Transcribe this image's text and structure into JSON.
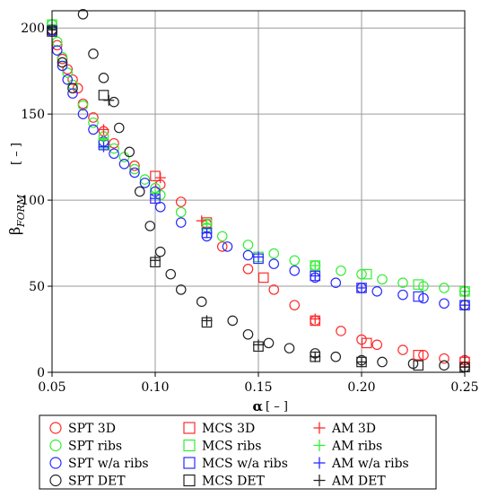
{
  "chart_data": {
    "type": "scatter",
    "title": "",
    "xlabel_main": "α",
    "xlabel_unit": "[ – ]",
    "ylabel_main": "β",
    "ylabel_sub": "FORM",
    "ylabel_unit": "[ – ]",
    "xlim": [
      0.05,
      0.25
    ],
    "ylim": [
      0,
      210
    ],
    "x_ticks": [
      "0.05",
      "0.10",
      "0.15",
      "0.20",
      "0.25"
    ],
    "y_ticks": [
      "0",
      "50",
      "100",
      "150",
      "200"
    ],
    "grid": true,
    "legend_position": "bottom",
    "colors": {
      "3D": "#ff2a2a",
      "ribs": "#33ee33",
      "wa_ribs": "#2a2aff",
      "DET": "#222222"
    },
    "series": [
      {
        "name": "SPT 3D",
        "marker": "circle",
        "color_key": "3D",
        "x": [
          0.05,
          0.0525,
          0.055,
          0.0575,
          0.06,
          0.0625,
          0.065,
          0.07,
          0.075,
          0.08,
          0.09,
          0.1025,
          0.1125,
          0.125,
          0.1325,
          0.145,
          0.1575,
          0.1675,
          0.1775,
          0.19,
          0.2,
          0.2075,
          0.22,
          0.23,
          0.24,
          0.25
        ],
        "y": [
          198,
          190,
          182,
          176,
          170,
          165,
          156,
          148,
          140,
          133,
          120,
          109,
          99,
          86,
          73,
          60,
          48,
          39,
          30,
          24,
          19,
          16,
          13,
          10,
          8,
          7
        ]
      },
      {
        "name": "SPT ribs",
        "marker": "circle",
        "color_key": "ribs",
        "x": [
          0.05,
          0.0525,
          0.055,
          0.0575,
          0.06,
          0.065,
          0.07,
          0.075,
          0.08,
          0.085,
          0.09,
          0.095,
          0.1,
          0.1025,
          0.1125,
          0.125,
          0.1325,
          0.145,
          0.1575,
          0.1675,
          0.1775,
          0.19,
          0.2,
          0.21,
          0.22,
          0.23,
          0.24,
          0.25
        ],
        "y": [
          202,
          192,
          183,
          174,
          167,
          155,
          145,
          137,
          130,
          125,
          118,
          112,
          107,
          103,
          93,
          84,
          79,
          74,
          69,
          65,
          62,
          59,
          57,
          54,
          52,
          50,
          49,
          47
        ]
      },
      {
        "name": "SPT w/a ribs",
        "marker": "circle",
        "color_key": "wa_ribs",
        "x": [
          0.05,
          0.0525,
          0.055,
          0.0575,
          0.06,
          0.065,
          0.07,
          0.075,
          0.08,
          0.085,
          0.09,
          0.095,
          0.1,
          0.1025,
          0.1125,
          0.125,
          0.135,
          0.145,
          0.1575,
          0.1675,
          0.1775,
          0.1875,
          0.2,
          0.2075,
          0.22,
          0.23,
          0.24,
          0.25
        ],
        "y": [
          198,
          187,
          178,
          170,
          162,
          150,
          141,
          134,
          127,
          121,
          116,
          110,
          105,
          96,
          87,
          79,
          73,
          68,
          63,
          59,
          55,
          52,
          49,
          47,
          45,
          43,
          40,
          39
        ]
      },
      {
        "name": "SPT DET",
        "marker": "circle",
        "color_key": "DET",
        "x": [
          0.05,
          0.055,
          0.06,
          0.065,
          0.07,
          0.075,
          0.08,
          0.0825,
          0.0875,
          0.0925,
          0.0975,
          0.1025,
          0.1075,
          0.1125,
          0.1225,
          0.1375,
          0.145,
          0.155,
          0.165,
          0.1775,
          0.1875,
          0.2,
          0.21,
          0.225,
          0.24,
          0.25
        ],
        "y": [
          199,
          180,
          165,
          208,
          185,
          171,
          157,
          142,
          128,
          105,
          85,
          70,
          57,
          48,
          41,
          30,
          22,
          17,
          14,
          11,
          9,
          7,
          6,
          5,
          4,
          3
        ]
      },
      {
        "name": "MCS 3D",
        "marker": "square",
        "color_key": "3D",
        "x": [
          0.05,
          0.1,
          0.125,
          0.1525,
          0.1775,
          0.2025,
          0.2275,
          0.25
        ],
        "y": [
          199,
          114,
          87,
          55,
          30,
          17,
          10,
          6
        ]
      },
      {
        "name": "MCS ribs",
        "marker": "square",
        "color_key": "ribs",
        "x": [
          0.05,
          0.075,
          0.125,
          0.15,
          0.1775,
          0.2025,
          0.2275,
          0.25
        ],
        "y": [
          202,
          133,
          86,
          67,
          62,
          57,
          51,
          47
        ]
      },
      {
        "name": "MCS w/a ribs",
        "marker": "square",
        "color_key": "wa_ribs",
        "x": [
          0.05,
          0.075,
          0.1,
          0.125,
          0.15,
          0.1775,
          0.2,
          0.2275,
          0.25
        ],
        "y": [
          199,
          132,
          101,
          81,
          66,
          56,
          49,
          44,
          39
        ]
      },
      {
        "name": "MCS DET",
        "marker": "square",
        "color_key": "DET",
        "x": [
          0.05,
          0.075,
          0.1,
          0.125,
          0.15,
          0.1775,
          0.2,
          0.2275,
          0.25
        ],
        "y": [
          198,
          161,
          64,
          29,
          15,
          9,
          6,
          4,
          3
        ]
      },
      {
        "name": "AM 3D",
        "marker": "plus",
        "color_key": "3D",
        "x": [
          0.05,
          0.075,
          0.1025,
          0.1225,
          0.1775,
          0.25
        ],
        "y": [
          199,
          141,
          113,
          88,
          31,
          6
        ]
      },
      {
        "name": "AM ribs",
        "marker": "plus",
        "color_key": "ribs",
        "x": [
          0.05,
          0.075,
          0.1,
          0.125,
          0.1775,
          0.25
        ],
        "y": [
          202,
          135,
          104,
          86,
          62,
          47
        ]
      },
      {
        "name": "AM w/a ribs",
        "marker": "plus",
        "color_key": "wa_ribs",
        "x": [
          0.05,
          0.075,
          0.1,
          0.125,
          0.15,
          0.1775,
          0.2,
          0.25
        ],
        "y": [
          199,
          131,
          101,
          81,
          67,
          56,
          49,
          39
        ]
      },
      {
        "name": "AM DET",
        "marker": "plus",
        "color_key": "DET",
        "x": [
          0.05,
          0.0775,
          0.1,
          0.125,
          0.15,
          0.1775,
          0.2,
          0.25
        ],
        "y": [
          199,
          158,
          65,
          30,
          16,
          9,
          6,
          3
        ]
      }
    ],
    "legend": {
      "columns": [
        [
          "SPT 3D",
          "SPT ribs",
          "SPT w/a ribs",
          "SPT DET"
        ],
        [
          "MCS 3D",
          "MCS ribs",
          "MCS w/a ribs",
          "MCS DET"
        ],
        [
          "AM 3D",
          "AM ribs",
          "AM w/a ribs",
          "AM DET"
        ]
      ]
    }
  }
}
